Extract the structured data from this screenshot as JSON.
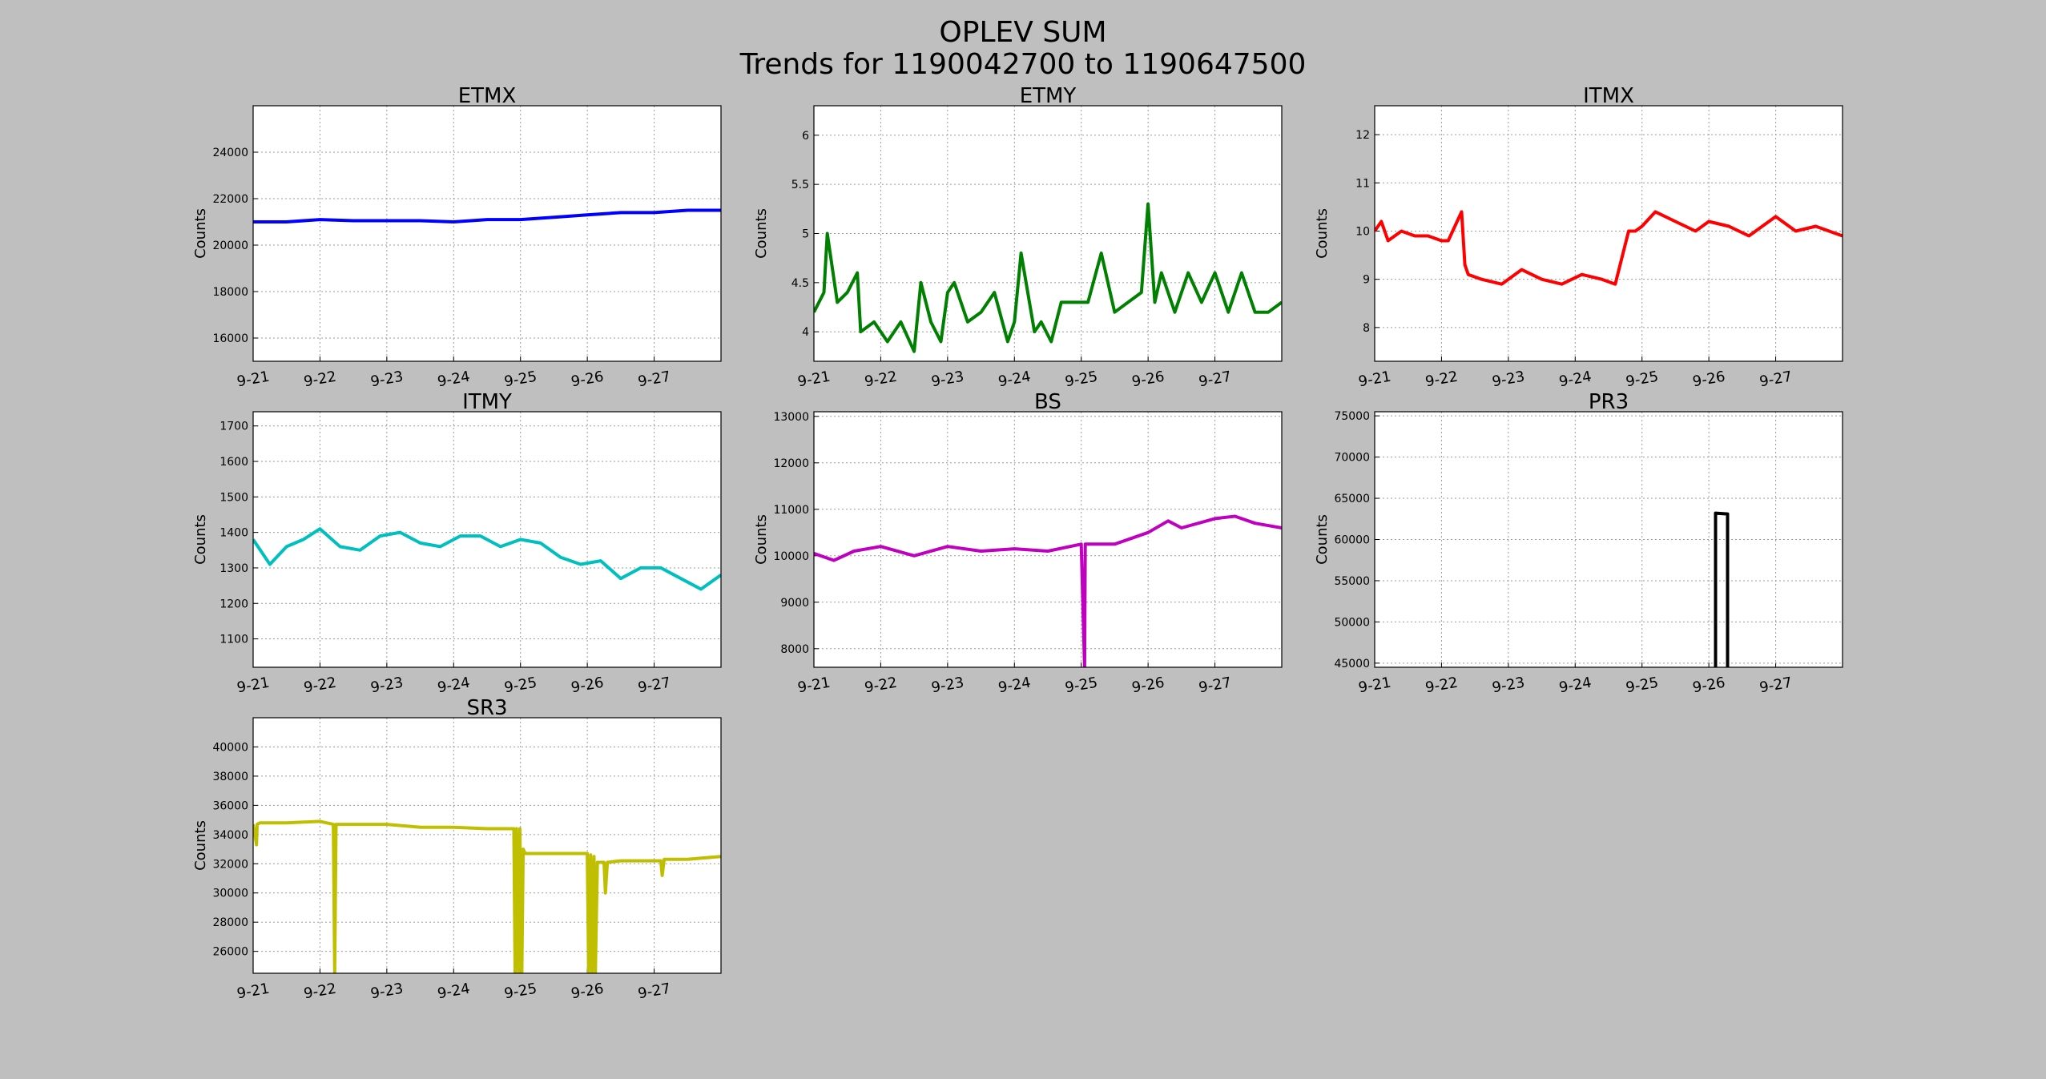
{
  "figure": {
    "title": "OPLEV SUM",
    "subtitle": "Trends for 1190042700 to 1190647500"
  },
  "chart_data": [
    {
      "type": "line",
      "title": "ETMX",
      "ylabel": "Counts",
      "xlabel": "",
      "color": "#0000ff",
      "xlim": [
        0,
        7
      ],
      "ylim": [
        15000,
        26000
      ],
      "xticks": [
        "9-21",
        "9-22",
        "9-23",
        "9-24",
        "9-25",
        "9-26",
        "9-27"
      ],
      "yticks": [
        16000,
        18000,
        20000,
        22000,
        24000
      ],
      "grid": true,
      "x": [
        0,
        0.5,
        1,
        1.5,
        2,
        2.5,
        3,
        3.5,
        4,
        4.5,
        5,
        5.5,
        6,
        6.5,
        7
      ],
      "y": [
        21000,
        21000,
        21100,
        21050,
        21050,
        21050,
        21000,
        21100,
        21100,
        21200,
        21300,
        21400,
        21400,
        21500,
        21500
      ]
    },
    {
      "type": "line",
      "title": "ETMY",
      "ylabel": "Counts",
      "xlabel": "",
      "color": "#008000",
      "xlim": [
        0,
        7
      ],
      "ylim": [
        3.7,
        6.3
      ],
      "xticks": [
        "9-21",
        "9-22",
        "9-23",
        "9-24",
        "9-25",
        "9-26",
        "9-27"
      ],
      "yticks": [
        4.0,
        4.5,
        5.0,
        5.5,
        6.0
      ],
      "grid": true,
      "x": [
        0,
        0.15,
        0.2,
        0.35,
        0.5,
        0.65,
        0.7,
        0.9,
        1.1,
        1.3,
        1.5,
        1.6,
        1.75,
        1.9,
        2.0,
        2.1,
        2.3,
        2.5,
        2.7,
        2.9,
        3.0,
        3.1,
        3.3,
        3.4,
        3.55,
        3.7,
        3.9,
        4.1,
        4.3,
        4.5,
        4.7,
        4.9,
        5.0,
        5.1,
        5.2,
        5.4,
        5.6,
        5.8,
        6.0,
        6.2,
        6.4,
        6.6,
        6.8,
        7.0
      ],
      "y": [
        4.2,
        4.4,
        5.0,
        4.3,
        4.4,
        4.6,
        4.0,
        4.1,
        3.9,
        4.1,
        3.8,
        4.5,
        4.1,
        3.9,
        4.4,
        4.5,
        4.1,
        4.2,
        4.4,
        3.9,
        4.1,
        4.8,
        4.0,
        4.1,
        3.9,
        4.3,
        4.3,
        4.3,
        4.8,
        4.2,
        4.3,
        4.4,
        5.3,
        4.3,
        4.6,
        4.2,
        4.6,
        4.3,
        4.6,
        4.2,
        4.6,
        4.2,
        4.2,
        4.3
      ]
    },
    {
      "type": "line",
      "title": "ITMX",
      "ylabel": "Counts",
      "xlabel": "",
      "color": "#ff0000",
      "xlim": [
        0,
        7
      ],
      "ylim": [
        7.3,
        12.6
      ],
      "xticks": [
        "9-21",
        "9-22",
        "9-23",
        "9-24",
        "9-25",
        "9-26",
        "9-27"
      ],
      "yticks": [
        8,
        9,
        10,
        11,
        12
      ],
      "grid": true,
      "x": [
        0,
        0.1,
        0.2,
        0.4,
        0.6,
        0.8,
        1.0,
        1.1,
        1.3,
        1.35,
        1.4,
        1.6,
        1.9,
        2.2,
        2.5,
        2.8,
        3.1,
        3.4,
        3.6,
        3.8,
        3.9,
        4.0,
        4.2,
        4.5,
        4.8,
        5.0,
        5.3,
        5.6,
        6.0,
        6.3,
        6.6,
        7.0
      ],
      "y": [
        10.0,
        10.2,
        9.8,
        10.0,
        9.9,
        9.9,
        9.8,
        9.8,
        10.4,
        9.3,
        9.1,
        9.0,
        8.9,
        9.2,
        9.0,
        8.9,
        9.1,
        9.0,
        8.9,
        10.0,
        10.0,
        10.1,
        10.4,
        10.2,
        10.0,
        10.2,
        10.1,
        9.9,
        10.3,
        10.0,
        10.1,
        9.9
      ]
    },
    {
      "type": "line",
      "title": "ITMY",
      "ylabel": "Counts",
      "xlabel": "",
      "color": "#00bfbf",
      "xlim": [
        0,
        7
      ],
      "ylim": [
        1020,
        1740
      ],
      "xticks": [
        "9-21",
        "9-22",
        "9-23",
        "9-24",
        "9-25",
        "9-26",
        "9-27"
      ],
      "yticks": [
        1100,
        1200,
        1300,
        1400,
        1500,
        1600,
        1700
      ],
      "grid": true,
      "x": [
        0,
        0.25,
        0.5,
        0.75,
        1.0,
        1.3,
        1.6,
        1.9,
        2.2,
        2.5,
        2.8,
        3.1,
        3.4,
        3.7,
        4.0,
        4.3,
        4.6,
        4.9,
        5.2,
        5.5,
        5.8,
        6.1,
        6.4,
        6.7,
        7.0
      ],
      "y": [
        1380,
        1310,
        1360,
        1380,
        1410,
        1360,
        1350,
        1390,
        1400,
        1370,
        1360,
        1390,
        1390,
        1360,
        1380,
        1370,
        1330,
        1310,
        1320,
        1270,
        1300,
        1300,
        1270,
        1240,
        1280
      ]
    },
    {
      "type": "line",
      "title": "BS",
      "ylabel": "Counts",
      "xlabel": "",
      "color": "#bf00bf",
      "xlim": [
        0,
        7
      ],
      "ylim": [
        7600,
        13100
      ],
      "xticks": [
        "9-21",
        "9-22",
        "9-23",
        "9-24",
        "9-25",
        "9-26",
        "9-27"
      ],
      "yticks": [
        8000,
        9000,
        10000,
        11000,
        12000,
        13000
      ],
      "grid": true,
      "x": [
        0,
        0.3,
        0.6,
        1.0,
        1.5,
        2.0,
        2.5,
        3.0,
        3.5,
        4.0,
        4.05,
        4.06,
        4.07,
        4.5,
        5.0,
        5.3,
        5.5,
        6.0,
        6.3,
        6.6,
        7.0
      ],
      "y": [
        10050,
        9900,
        10100,
        10200,
        10000,
        10200,
        10100,
        10150,
        10100,
        10250,
        7600,
        10250,
        10250,
        10250,
        10500,
        10750,
        10600,
        10800,
        10850,
        10700,
        10600
      ]
    },
    {
      "type": "line",
      "title": "PR3",
      "ylabel": "Counts",
      "xlabel": "",
      "color": "#000000",
      "xlim": [
        0,
        7
      ],
      "ylim": [
        44500,
        75500
      ],
      "xticks": [
        "9-21",
        "9-22",
        "9-23",
        "9-24",
        "9-25",
        "9-26",
        "9-27"
      ],
      "yticks": [
        45000,
        50000,
        55000,
        60000,
        65000,
        70000,
        75000
      ],
      "grid": true,
      "x": [
        5.1,
        5.1,
        5.28,
        5.28
      ],
      "y": [
        44500,
        63200,
        63100,
        44500
      ]
    },
    {
      "type": "line",
      "title": "SR3",
      "ylabel": "Counts",
      "xlabel": "",
      "color": "#bfbf00",
      "xlim": [
        0,
        7
      ],
      "ylim": [
        24500,
        42000
      ],
      "xticks": [
        "9-21",
        "9-22",
        "9-23",
        "9-24",
        "9-25",
        "9-26",
        "9-27"
      ],
      "yticks": [
        26000,
        28000,
        30000,
        32000,
        34000,
        36000,
        38000,
        40000
      ],
      "grid": true,
      "x": [
        0,
        0.05,
        0.06,
        0.1,
        0.5,
        1.0,
        1.2,
        1.22,
        1.24,
        1.5,
        2.0,
        2.5,
        3.0,
        3.5,
        3.9,
        3.92,
        3.94,
        3.97,
        3.99,
        4.02,
        4.04,
        4.07,
        4.2,
        5.0,
        5.02,
        5.05,
        5.07,
        5.1,
        5.12,
        5.15,
        5.2,
        5.25,
        5.27,
        5.3,
        5.5,
        6.0,
        6.1,
        6.12,
        6.15,
        6.5,
        7.0
      ],
      "y": [
        34700,
        33300,
        34700,
        34800,
        34800,
        34900,
        34700,
        24500,
        34700,
        34700,
        34700,
        34500,
        34500,
        34400,
        34400,
        24500,
        34400,
        24500,
        34400,
        24500,
        33000,
        32700,
        32700,
        32700,
        24500,
        32600,
        24500,
        32500,
        24500,
        32100,
        32100,
        32100,
        30000,
        32100,
        32200,
        32200,
        32200,
        31200,
        32300,
        32300,
        32500
      ]
    }
  ]
}
